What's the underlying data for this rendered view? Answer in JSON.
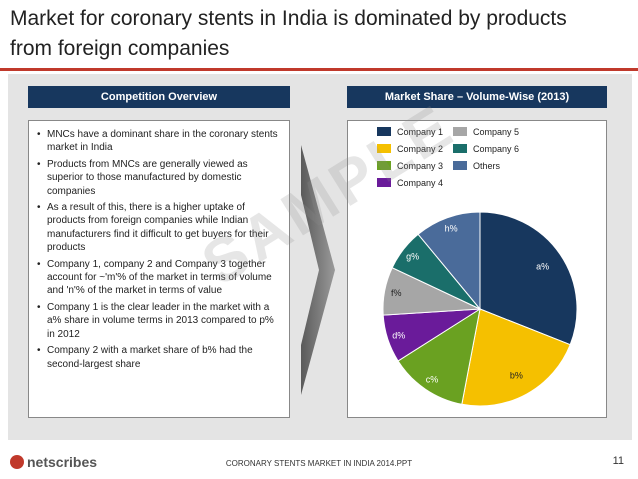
{
  "slide": {
    "title": "Market for coronary stents in India is dominated by products from foreign companies",
    "watermark": "SAMPLE"
  },
  "left_panel": {
    "header": "Competition Overview",
    "bullets": [
      "MNCs have a dominant share in the coronary stents market in India",
      "Products from MNCs are generally viewed as superior to those manufactured by domestic companies",
      "As a result of this, there is a higher uptake of products from foreign companies while Indian manufacturers find it difficult to get buyers for their products",
      "Company 1, company 2 and Company 3 together account for ~'m'% of the market in terms of volume and 'n'% of the market in terms of value",
      "Company 1 is the clear leader in the market with a a% share in volume terms in 2013 compared to p% in 2012",
      "Company 2 with a market share of b% had the second-largest share"
    ]
  },
  "right_panel": {
    "header": "Market Share – Volume-Wise (2013)"
  },
  "chart_data": {
    "type": "pie",
    "title": "Market Share – Volume-Wise (2013)",
    "legend_position": "top",
    "categories": [
      "Company 1",
      "Company 2",
      "Company 3",
      "Company 4",
      "Company 5",
      "Company 6",
      "Others"
    ],
    "data_labels": [
      "a%",
      "b%",
      "c%",
      "d%",
      "f%",
      "g%",
      "h%"
    ],
    "values": [
      31,
      22,
      13,
      8,
      8,
      7,
      11
    ],
    "colors": [
      "#17375e",
      "#f5c000",
      "#6aa121",
      "#6a1b9a",
      "#a6a6a6",
      "#1a6e6a",
      "#4a6b9a"
    ]
  },
  "footer": {
    "logo": "netscribes",
    "text": "CORONARY STENTS MARKET IN INDIA 2014.PPT",
    "page_number": "11"
  }
}
